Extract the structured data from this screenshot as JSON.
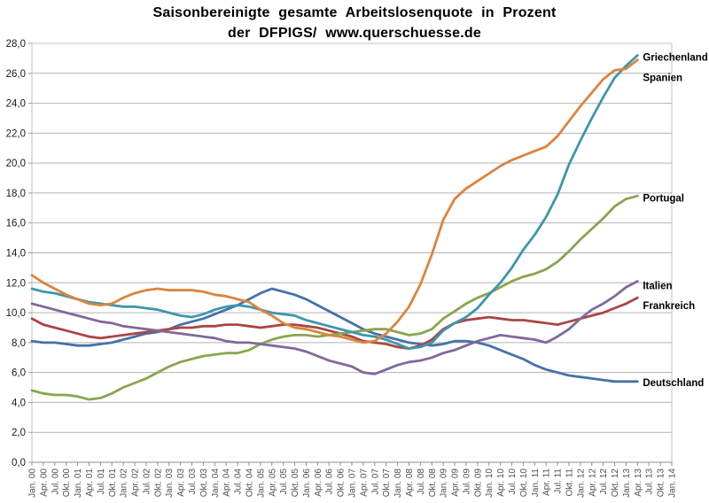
{
  "chart_data": {
    "type": "line",
    "title_line1": "Saisonbereinigte gesamte Arbeitslosenquote in Prozent",
    "title_line2": "der DFPIGS/ www.querschuesse.de",
    "grid": "horizontal",
    "legend_position": "right-end-labels",
    "background": "#ffffff",
    "ylim": [
      0,
      28
    ],
    "y_tick_step": 2,
    "y_tick_labels": [
      "0,0",
      "2,0",
      "4,0",
      "6,0",
      "8,0",
      "10,0",
      "12,0",
      "14,0",
      "16,0",
      "18,0",
      "20,0",
      "22,0",
      "24,0",
      "26,0",
      "28,0"
    ],
    "x_tick_labels": [
      "Jan. 00",
      "Apr. 00",
      "Jul. 00",
      "Okt. 00",
      "Jan. 01",
      "Apr. 01",
      "Jul. 01",
      "Okt. 01",
      "Jan. 02",
      "Apr. 02",
      "Jul. 02",
      "Okt. 02",
      "Jan. 03",
      "Apr. 03",
      "Jul. 03",
      "Okt. 03",
      "Jan. 04",
      "Apr. 04",
      "Jul. 04",
      "Okt. 04",
      "Jan. 05",
      "Apr. 05",
      "Jul. 05",
      "Okt. 05",
      "Jan. 06",
      "Apr. 06",
      "Jul. 06",
      "Okt. 06",
      "Jan. 07",
      "Apr. 07",
      "Jul. 07",
      "Okt. 07",
      "Jan. 08",
      "Apr. 08",
      "Jul. 08",
      "Okt. 08",
      "Jan. 09",
      "Apr. 09",
      "Jul. 09",
      "Okt. 09",
      "Jan. 10",
      "Apr. 10",
      "Jul. 10",
      "Okt. 10",
      "Jan. 11",
      "Apr. 11",
      "Jul. 11",
      "Okt. 11",
      "Jan. 12",
      "Apr. 12",
      "Jul. 12",
      "Okt. 12",
      "Jan. 13",
      "Apr. 13",
      "Jul. 13",
      "Okt. 13",
      "Jan. 14"
    ],
    "series": [
      {
        "name": "Deutschland",
        "color": "#4572A7",
        "values": [
          8.1,
          8.0,
          8.0,
          7.9,
          7.8,
          7.8,
          7.9,
          8.0,
          8.2,
          8.4,
          8.6,
          8.7,
          8.9,
          9.2,
          9.4,
          9.6,
          9.9,
          10.2,
          10.5,
          10.9,
          11.3,
          11.6,
          11.4,
          11.2,
          10.9,
          10.5,
          10.1,
          9.7,
          9.3,
          8.9,
          8.6,
          8.4,
          8.2,
          8.0,
          7.9,
          7.8,
          7.9,
          8.1,
          8.1,
          8.0,
          7.8,
          7.5,
          7.2,
          6.9,
          6.5,
          6.2,
          6.0,
          5.8,
          5.7,
          5.6,
          5.5,
          5.4,
          5.4,
          5.4
        ]
      },
      {
        "name": "Frankreich",
        "color": "#AA4643",
        "values": [
          9.6,
          9.2,
          9.0,
          8.8,
          8.6,
          8.4,
          8.3,
          8.4,
          8.5,
          8.6,
          8.7,
          8.8,
          8.9,
          9.0,
          9.0,
          9.1,
          9.1,
          9.2,
          9.2,
          9.1,
          9.0,
          9.1,
          9.2,
          9.2,
          9.1,
          9.0,
          8.8,
          8.6,
          8.4,
          8.1,
          8.0,
          7.9,
          7.7,
          7.6,
          7.8,
          8.2,
          8.9,
          9.3,
          9.5,
          9.6,
          9.7,
          9.6,
          9.5,
          9.5,
          9.4,
          9.3,
          9.2,
          9.4,
          9.6,
          9.8,
          10.0,
          10.3,
          10.6,
          11.0
        ]
      },
      {
        "name": "Portugal",
        "color": "#89A54E",
        "values": [
          4.8,
          4.6,
          4.5,
          4.5,
          4.4,
          4.2,
          4.3,
          4.6,
          5.0,
          5.3,
          5.6,
          6.0,
          6.4,
          6.7,
          6.9,
          7.1,
          7.2,
          7.3,
          7.3,
          7.5,
          7.9,
          8.2,
          8.4,
          8.5,
          8.5,
          8.4,
          8.5,
          8.6,
          8.7,
          8.8,
          8.9,
          8.9,
          8.7,
          8.5,
          8.6,
          8.9,
          9.6,
          10.1,
          10.6,
          11.0,
          11.3,
          11.7,
          12.1,
          12.4,
          12.6,
          12.9,
          13.4,
          14.1,
          14.9,
          15.6,
          16.3,
          17.1,
          17.6,
          17.8
        ]
      },
      {
        "name": "Italien",
        "color": "#80699B",
        "values": [
          10.6,
          10.4,
          10.2,
          10.0,
          9.8,
          9.6,
          9.4,
          9.3,
          9.1,
          9.0,
          8.9,
          8.8,
          8.7,
          8.6,
          8.5,
          8.4,
          8.3,
          8.1,
          8.0,
          8.0,
          7.9,
          7.8,
          7.7,
          7.6,
          7.4,
          7.1,
          6.8,
          6.6,
          6.4,
          6.0,
          5.9,
          6.2,
          6.5,
          6.7,
          6.8,
          7.0,
          7.3,
          7.5,
          7.8,
          8.1,
          8.3,
          8.5,
          8.4,
          8.3,
          8.2,
          8.0,
          8.4,
          8.9,
          9.6,
          10.2,
          10.6,
          11.1,
          11.7,
          12.1
        ]
      },
      {
        "name": "Griechenland",
        "color": "#3D96AE",
        "values": [
          11.6,
          11.4,
          11.3,
          11.1,
          10.9,
          10.7,
          10.6,
          10.5,
          10.4,
          10.4,
          10.3,
          10.2,
          10.0,
          9.8,
          9.7,
          9.9,
          10.2,
          10.4,
          10.5,
          10.4,
          10.2,
          10.0,
          9.9,
          9.8,
          9.5,
          9.3,
          9.1,
          8.9,
          8.7,
          8.5,
          8.4,
          8.2,
          7.9,
          7.6,
          7.7,
          8.0,
          8.8,
          9.3,
          9.7,
          10.3,
          11.2,
          12.0,
          13.0,
          14.2,
          15.2,
          16.4,
          17.9,
          19.9,
          21.5,
          23.0,
          24.4,
          25.7,
          26.5,
          27.2
        ]
      },
      {
        "name": "Spanien",
        "color": "#DB843D",
        "values": [
          12.5,
          12.0,
          11.6,
          11.2,
          10.9,
          10.6,
          10.5,
          10.6,
          11.0,
          11.3,
          11.5,
          11.6,
          11.5,
          11.5,
          11.5,
          11.4,
          11.2,
          11.1,
          10.9,
          10.7,
          10.2,
          9.8,
          9.3,
          9.0,
          8.9,
          8.7,
          8.5,
          8.4,
          8.2,
          8.0,
          8.1,
          8.6,
          9.4,
          10.4,
          11.9,
          13.9,
          16.2,
          17.6,
          18.3,
          18.8,
          19.3,
          19.8,
          20.2,
          20.5,
          20.8,
          21.1,
          21.8,
          22.8,
          23.8,
          24.7,
          25.6,
          26.2,
          26.3,
          26.9
        ]
      }
    ],
    "end_labels": [
      "Griechenland",
      "Spanien",
      "Portugal",
      "Italien",
      "Frankreich",
      "Deutschland"
    ]
  }
}
